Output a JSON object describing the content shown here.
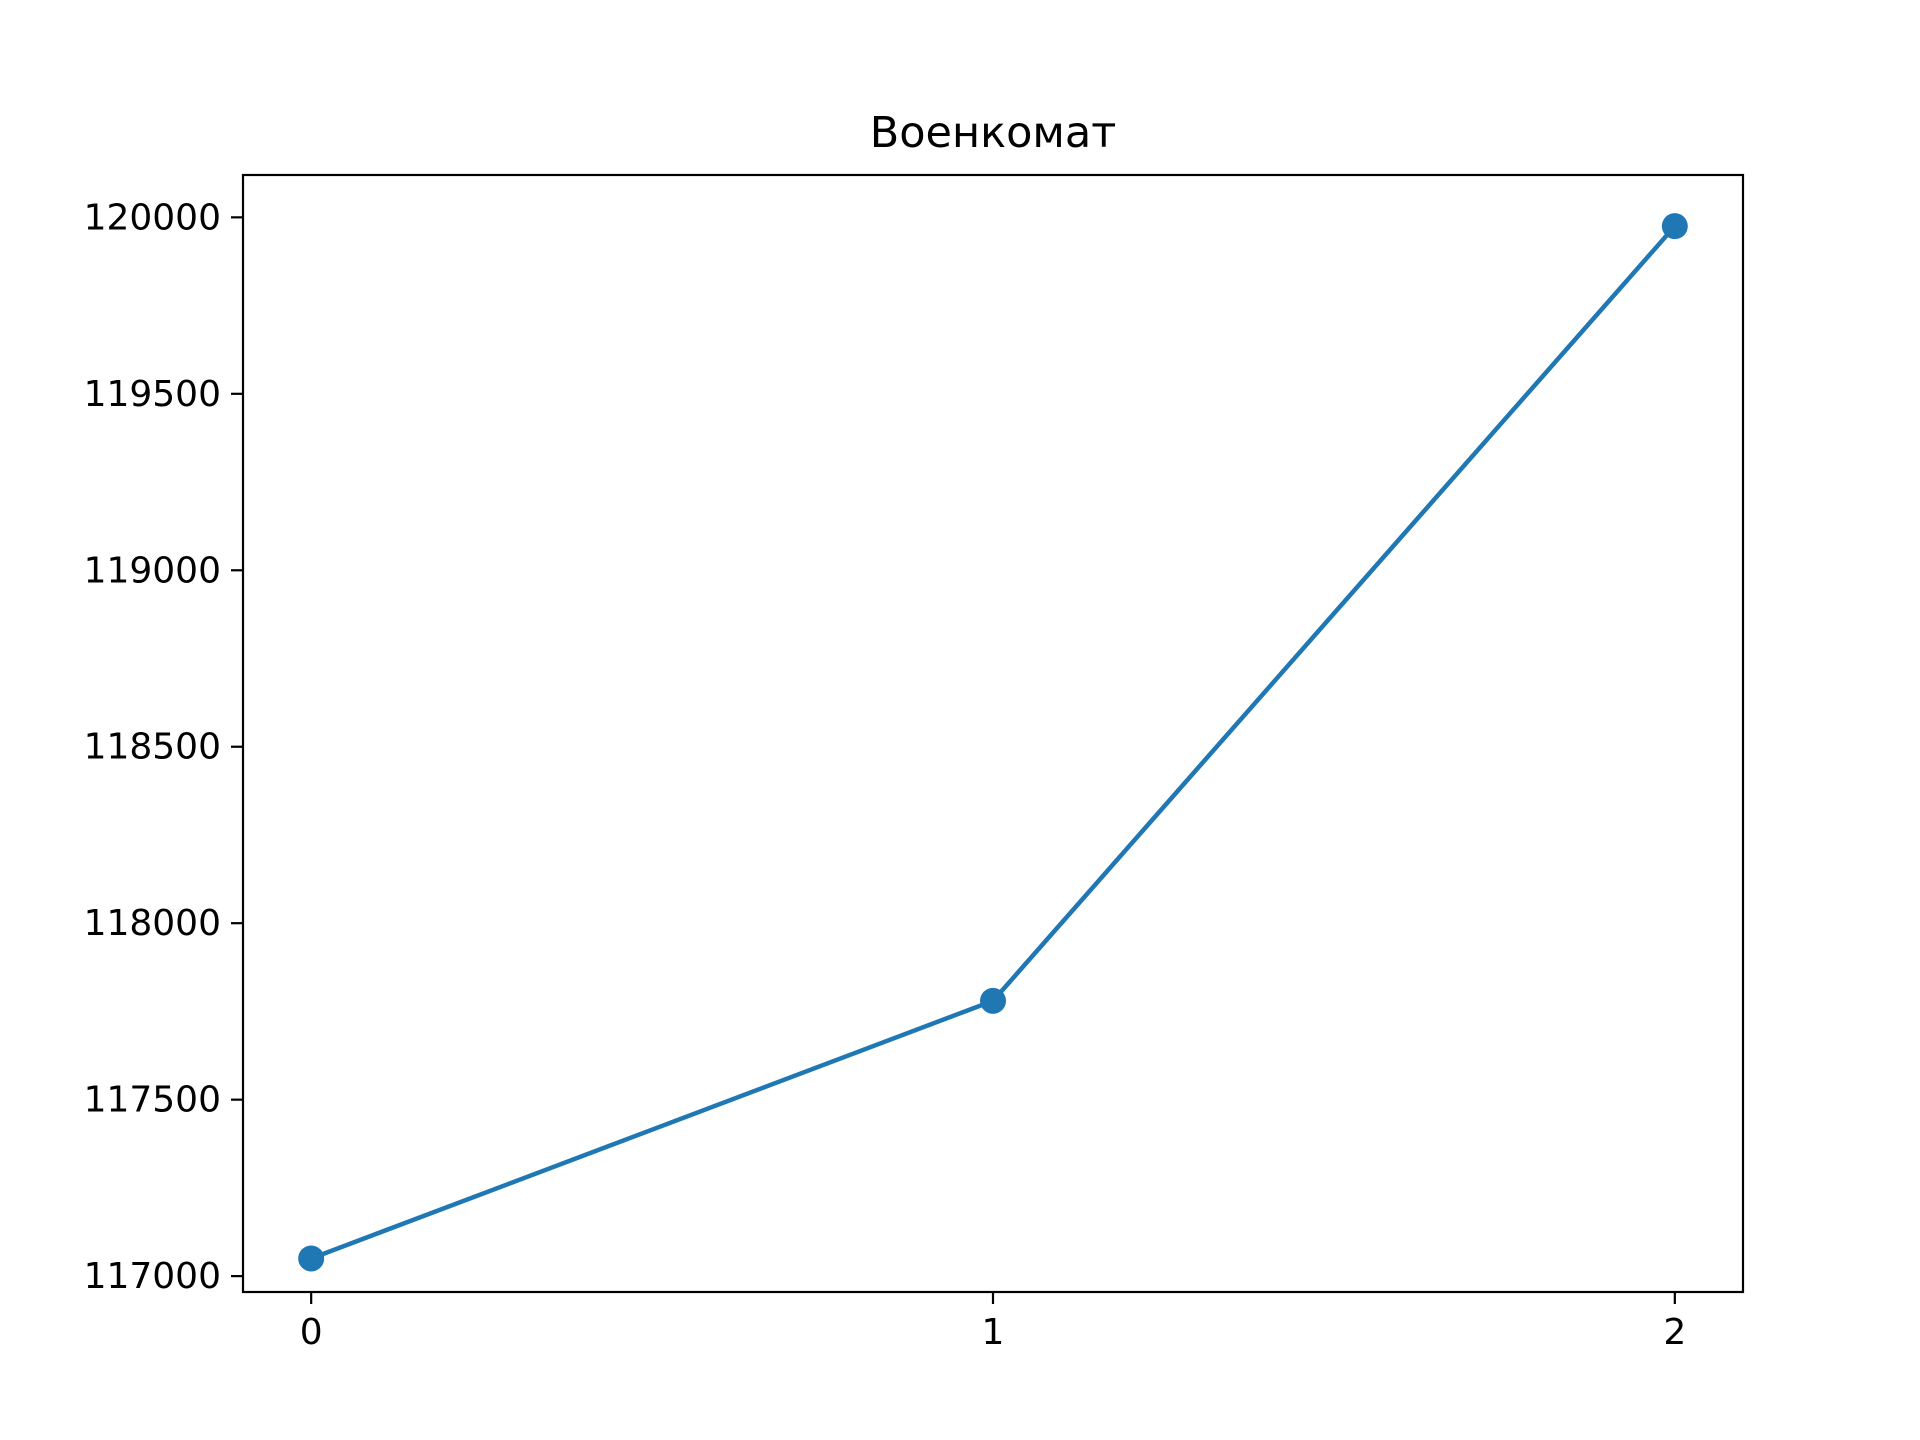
{
  "chart_data": {
    "type": "line",
    "title": "Военкомат",
    "xlabel": "",
    "ylabel": "",
    "x": [
      0,
      1,
      2
    ],
    "series": [
      {
        "values": [
          117050,
          117780,
          119975
        ],
        "color": "#1f77b4",
        "marker": "circle"
      }
    ],
    "xlim": [
      -0.1,
      2.1
    ],
    "ylim": [
      116955,
      120120
    ],
    "xticks": [
      0,
      1,
      2
    ],
    "xtick_labels": [
      "0",
      "1",
      "2"
    ],
    "yticks": [
      117000,
      117500,
      118000,
      118500,
      119000,
      119500,
      120000
    ],
    "ytick_labels": [
      "117000",
      "117500",
      "118000",
      "118500",
      "119000",
      "119500",
      "120000"
    ],
    "grid": false,
    "legend": "none"
  }
}
